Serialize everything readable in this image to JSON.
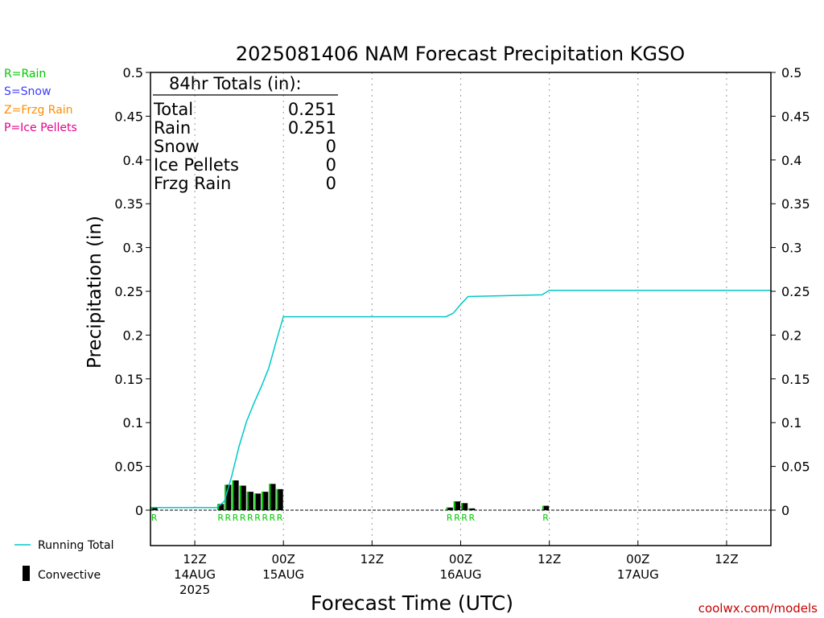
{
  "chart_data": {
    "type": "bar",
    "title": "2025081406 NAM Forecast Precipitation KGSO",
    "xlabel": "Forecast Time (UTC)",
    "ylabel": "Precipitation (in)",
    "ylim": [
      0,
      0.5
    ],
    "yticks": [
      "0",
      "0.05",
      "0.1",
      "0.15",
      "0.2",
      "0.25",
      "0.3",
      "0.35",
      "0.4",
      "0.45",
      "0.5"
    ],
    "xlim_hours": [
      0,
      84
    ],
    "xticks": [
      {
        "hour": 6,
        "l1": "12Z",
        "l2": "14AUG",
        "l3": "2025"
      },
      {
        "hour": 18,
        "l1": "00Z",
        "l2": "15AUG",
        "l3": ""
      },
      {
        "hour": 30,
        "l1": "12Z",
        "l2": "",
        "l3": ""
      },
      {
        "hour": 42,
        "l1": "00Z",
        "l2": "16AUG",
        "l3": ""
      },
      {
        "hour": 54,
        "l1": "12Z",
        "l2": "",
        "l3": ""
      },
      {
        "hour": 66,
        "l1": "00Z",
        "l2": "17AUG",
        "l3": ""
      },
      {
        "hour": 78,
        "l1": "12Z",
        "l2": "",
        "l3": ""
      }
    ],
    "series": [
      {
        "name": "Convective",
        "kind": "bar",
        "hours": [
          1,
          10,
          11,
          12,
          13,
          14,
          15,
          16,
          17,
          18,
          41,
          42,
          43,
          44,
          54
        ],
        "values": [
          0.003,
          0.007,
          0.029,
          0.034,
          0.028,
          0.021,
          0.019,
          0.021,
          0.03,
          0.024,
          0.003,
          0.01,
          0.008,
          0.002,
          0.005
        ],
        "types": [
          "R",
          "R",
          "R",
          "R",
          "R",
          "R",
          "R",
          "R",
          "R",
          "R",
          "R",
          "R",
          "R",
          "R",
          "R"
        ]
      },
      {
        "name": "Running Total",
        "kind": "line",
        "hours": [
          0,
          9,
          10,
          11,
          12,
          13,
          14,
          15,
          16,
          17,
          18,
          40,
          41,
          42,
          43,
          53,
          54,
          84
        ],
        "values": [
          0.003,
          0.003,
          0.01,
          0.039,
          0.073,
          0.101,
          0.122,
          0.141,
          0.162,
          0.192,
          0.221,
          0.221,
          0.225,
          0.235,
          0.244,
          0.246,
          0.251,
          0.251
        ]
      }
    ],
    "colors": {
      "line": "#00c8c8",
      "bar": "#000000",
      "bar_stripe": "#00c800",
      "rain": "#00c800",
      "snow": "#3c3cff",
      "frzg": "#ff8c00",
      "ice": "#e6008c",
      "credit": "#c80000"
    },
    "totals_box": {
      "heading": "84hr Totals (in):",
      "rows": [
        {
          "label": "Total",
          "value": "0.251"
        },
        {
          "label": "Rain",
          "value": "0.251"
        },
        {
          "label": "Snow",
          "value": "0"
        },
        {
          "label": "Ice Pellets",
          "value": "0"
        },
        {
          "label": "Frzg Rain",
          "value": "0"
        }
      ]
    },
    "ptype_key": [
      "R=Rain",
      "S=Snow",
      "Z=Frzg Rain",
      "P=Ice Pellets"
    ],
    "legend": {
      "line_label": "Running Total",
      "bar_label": "Convective"
    },
    "credit": "coolwx.com/models"
  }
}
